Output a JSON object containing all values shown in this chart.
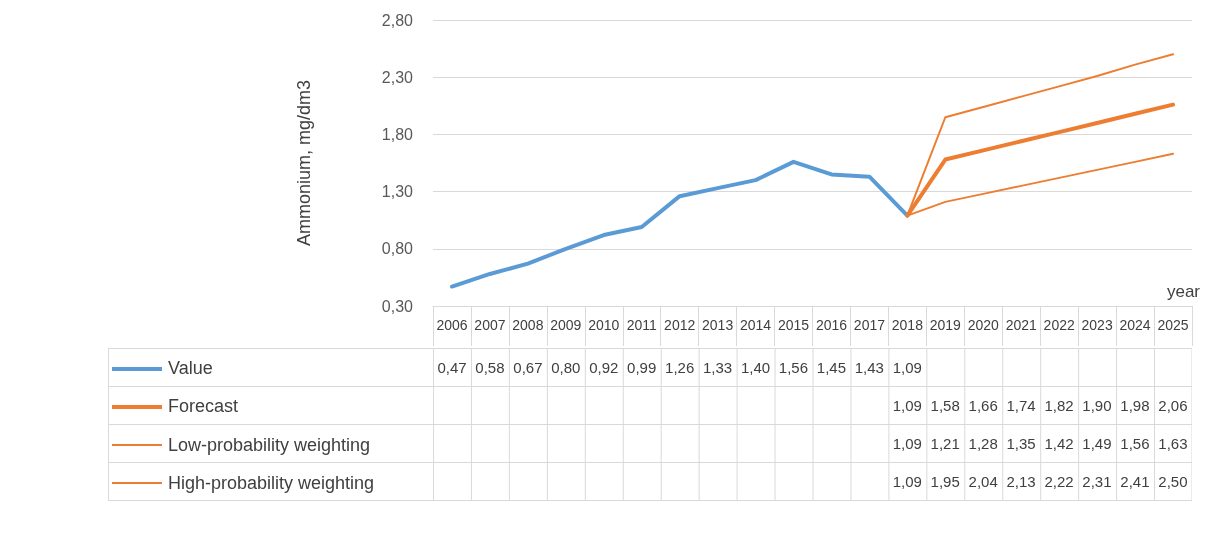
{
  "chart_data": {
    "type": "line",
    "xlabel": "year",
    "ylabel": "Ammonium, mg/dm3",
    "categories": [
      "2006",
      "2007",
      "2008",
      "2009",
      "2010",
      "2011",
      "2012",
      "2013",
      "2014",
      "2015",
      "2016",
      "2017",
      "2018",
      "2019",
      "2020",
      "2021",
      "2022",
      "2023",
      "2024",
      "2025"
    ],
    "ylim": [
      0.3,
      2.8
    ],
    "yticks": [
      {
        "value": 0.3,
        "label": "0,30"
      },
      {
        "value": 0.8,
        "label": "0,80"
      },
      {
        "value": 1.3,
        "label": "1,30"
      },
      {
        "value": 1.8,
        "label": "1,80"
      },
      {
        "value": 2.3,
        "label": "2,30"
      },
      {
        "value": 2.8,
        "label": "2,80"
      }
    ],
    "grid": "y",
    "legend": "bottom",
    "marker": "none",
    "series": [
      {
        "name": "Value",
        "color": "#5b9bd5",
        "values": [
          0.47,
          0.58,
          0.67,
          0.8,
          0.92,
          0.99,
          1.26,
          1.33,
          1.4,
          1.56,
          1.45,
          1.43,
          1.09,
          null,
          null,
          null,
          null,
          null,
          null,
          null
        ],
        "value_labels": [
          "0,47",
          "0,58",
          "0,67",
          "0,80",
          "0,92",
          "0,99",
          "1,26",
          "1,33",
          "1,40",
          "1,56",
          "1,45",
          "1,43",
          "1,09",
          null,
          null,
          null,
          null,
          null,
          null,
          null
        ]
      },
      {
        "name": "Forecast",
        "color": "#ed7d31",
        "values": [
          null,
          null,
          null,
          null,
          null,
          null,
          null,
          null,
          null,
          null,
          null,
          null,
          1.09,
          1.58,
          1.66,
          1.74,
          1.82,
          1.9,
          1.98,
          2.06
        ],
        "value_labels": [
          null,
          null,
          null,
          null,
          null,
          null,
          null,
          null,
          null,
          null,
          null,
          null,
          "1,09",
          "1,58",
          "1,66",
          "1,74",
          "1,82",
          "1,90",
          "1,98",
          "2,06"
        ]
      },
      {
        "name": "Low-probability weighting",
        "color": "#ed7d31",
        "values": [
          null,
          null,
          null,
          null,
          null,
          null,
          null,
          null,
          null,
          null,
          null,
          null,
          1.09,
          1.21,
          1.28,
          1.35,
          1.42,
          1.49,
          1.56,
          1.63
        ],
        "value_labels": [
          null,
          null,
          null,
          null,
          null,
          null,
          null,
          null,
          null,
          null,
          null,
          null,
          "1,09",
          "1,21",
          "1,28",
          "1,35",
          "1,42",
          "1,49",
          "1,56",
          "1,63"
        ]
      },
      {
        "name": "High-probability weighting",
        "color": "#ed7d31",
        "values": [
          null,
          null,
          null,
          null,
          null,
          null,
          null,
          null,
          null,
          null,
          null,
          null,
          1.09,
          1.95,
          2.04,
          2.13,
          2.22,
          2.31,
          2.41,
          2.5
        ],
        "value_labels": [
          null,
          null,
          null,
          null,
          null,
          null,
          null,
          null,
          null,
          null,
          null,
          null,
          "1,09",
          "1,95",
          "2,04",
          "2,13",
          "2,22",
          "2,31",
          "2,41",
          "2,50"
        ]
      }
    ]
  }
}
